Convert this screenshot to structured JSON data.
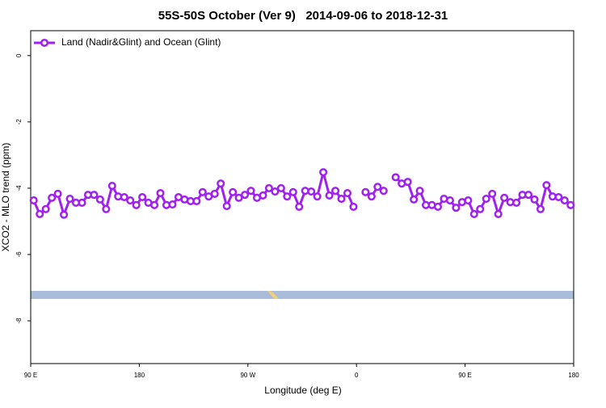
{
  "chart_data": {
    "type": "line",
    "title": "55S-50S October (Ver 9)   2014-09-06 to 2018-12-31",
    "xlabel": "Longitude (deg E)",
    "ylabel": "XCO2 - MLO trend (ppm)",
    "xlim": [
      90,
      540
    ],
    "ylim": [
      -9.29,
      0.75
    ],
    "xticks": [
      {
        "value": 90,
        "label": "90 E"
      },
      180,
      {
        "value": 270,
        "label": "90 W"
      },
      {
        "value": 360,
        "label": "0"
      },
      {
        "value": 450,
        "label": "90 E"
      },
      {
        "value": 540,
        "label": "180"
      }
    ],
    "yticks": [
      0,
      -2,
      -4,
      -6,
      -8
    ],
    "legend": "top-left",
    "x": [
      92.5,
      97.5,
      102.5,
      107.5,
      112.5,
      117.5,
      122.5,
      127.5,
      132.5,
      137.5,
      142.5,
      147.5,
      152.5,
      157.5,
      162.5,
      167.5,
      172.5,
      177.5,
      182.5,
      187.5,
      192.5,
      197.5,
      202.5,
      207.5,
      212.5,
      217.5,
      222.5,
      227.5,
      232.5,
      237.5,
      242.5,
      247.5,
      252.5,
      257.5,
      262.5,
      267.5,
      272.5,
      277.5,
      282.5,
      287.5,
      292.5,
      297.5,
      302.5,
      307.5,
      312.5,
      317.5,
      322.5,
      327.5,
      332.5,
      337.5,
      342.5,
      347.5,
      352.5,
      357.5,
      362.5,
      367.5,
      372.5,
      377.5,
      382.5,
      387.5,
      392.5,
      397.5,
      402.5,
      407.5,
      412.5,
      417.5,
      422.5,
      427.5,
      432.5,
      437.5,
      442.5,
      447.5,
      452.5,
      457.5,
      462.5,
      467.5,
      472.5,
      477.5,
      482.5,
      487.5,
      492.5,
      497.5,
      502.5,
      507.5,
      512.5,
      517.5,
      522.5,
      527.5,
      532.5,
      537.5
    ],
    "series": [
      {
        "name": "Land (Nadir&Glint) and Ocean (Glint)",
        "color": "#a020f0",
        "values": [
          -4.37,
          -4.78,
          -4.63,
          -4.29,
          -4.17,
          -4.8,
          -4.32,
          -4.44,
          -4.44,
          -4.2,
          -4.2,
          -4.34,
          -4.63,
          -3.93,
          -4.25,
          -4.27,
          -4.37,
          -4.51,
          -4.27,
          -4.44,
          -4.51,
          -4.15,
          -4.51,
          -4.49,
          -4.27,
          -4.34,
          -4.39,
          -4.39,
          -4.12,
          -4.25,
          -4.17,
          -3.86,
          -4.54,
          -4.12,
          -4.29,
          -4.2,
          -4.08,
          -4.29,
          -4.22,
          -4.0,
          -4.1,
          -4.0,
          -4.25,
          -4.12,
          -4.56,
          -4.08,
          -4.1,
          -4.25,
          -3.52,
          -4.22,
          -4.08,
          -4.32,
          -4.15,
          -4.56,
          null,
          -4.12,
          -4.25,
          -3.96,
          -4.08,
          null,
          -3.67,
          -3.86,
          -3.81,
          -4.34,
          -4.08,
          -4.51,
          -4.51,
          -4.56,
          -4.32,
          -4.37,
          -4.59,
          -4.42,
          -4.37,
          -4.78,
          -4.63,
          -4.32,
          -4.17,
          -4.78,
          -4.29,
          -4.42,
          -4.44,
          -4.2,
          -4.2,
          -4.34,
          -4.63,
          -3.91,
          -4.25,
          -4.27,
          -4.37,
          -4.51
        ]
      }
    ]
  }
}
